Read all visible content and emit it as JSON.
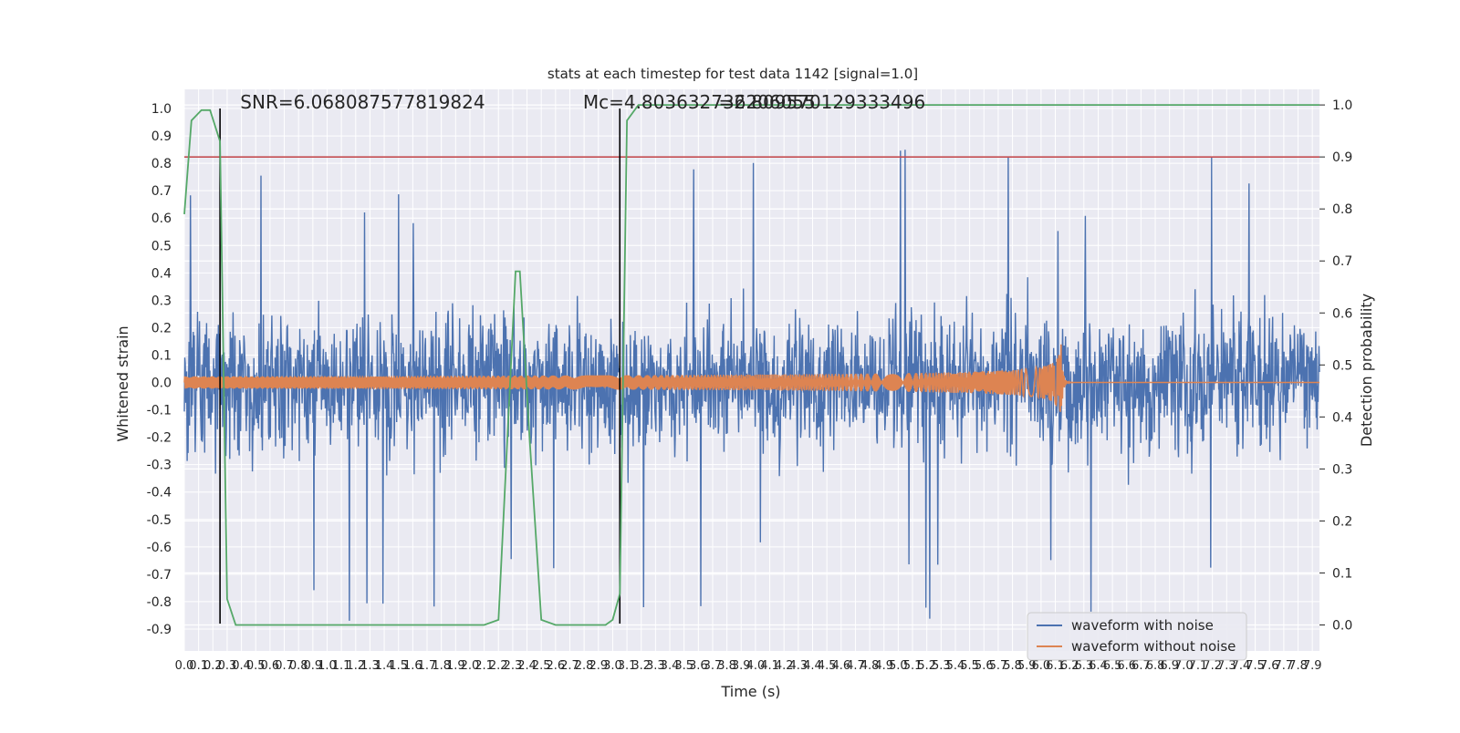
{
  "chart_data": {
    "type": "line",
    "title": "stats at each timestep for test data 1142 [signal=1.0]",
    "xlabel": "Time (s)",
    "ylabel": "Whitened strain",
    "ylabel_right": "Detection probability",
    "xlim": [
      0,
      7.95
    ],
    "ylim": [
      -0.98,
      1.07
    ],
    "ylim_right": [
      -0.05,
      1.03
    ],
    "x_ticks": [
      0.0,
      0.1,
      0.2,
      0.3,
      0.4,
      0.5,
      0.6,
      0.7,
      0.8,
      0.9,
      1.0,
      1.1,
      1.2,
      1.3,
      1.4,
      1.5,
      1.6,
      1.7,
      1.8,
      1.9,
      2.0,
      2.1,
      2.2,
      2.3,
      2.4,
      2.5,
      2.6,
      2.7,
      2.8,
      2.9,
      3.0,
      3.1,
      3.2,
      3.3,
      3.4,
      3.5,
      3.6,
      3.7,
      3.8,
      3.9,
      4.0,
      4.1,
      4.2,
      4.3,
      4.4,
      4.5,
      4.6,
      4.7,
      4.8,
      4.9,
      5.0,
      5.1,
      5.2,
      5.3,
      5.4,
      5.5,
      5.6,
      5.7,
      5.8,
      5.9,
      6.0,
      6.1,
      6.2,
      6.3,
      6.4,
      6.5,
      6.6,
      6.7,
      6.8,
      6.9,
      7.0,
      7.1,
      7.2,
      7.3,
      7.4,
      7.5,
      7.6,
      7.7,
      7.8,
      7.9
    ],
    "y_ticks": [
      1.0,
      0.9,
      0.8,
      0.7,
      0.6,
      0.5,
      0.4,
      0.3,
      0.2,
      0.1,
      0.0,
      -0.1,
      -0.2,
      -0.3,
      -0.4,
      -0.5,
      -0.6,
      -0.7,
      -0.8,
      -0.9
    ],
    "y_ticks_right": [
      1.0,
      0.9,
      0.8,
      0.7,
      0.6,
      0.5,
      0.4,
      0.3,
      0.2,
      0.1,
      0.0
    ],
    "grid": true,
    "legend_position": "bottom-right",
    "threshold": {
      "value": 0.9,
      "axis": "right",
      "color": "#c44e52"
    },
    "vertical_markers": [
      0.25,
      3.05
    ],
    "annotations": [
      {
        "text": "SNR=6.068087577819824",
        "x": 0.2,
        "y": 1.0
      },
      {
        "text": "Mᴄ=4.803632736206055",
        "x": 2.6,
        "y": 1.0
      },
      {
        "text": "=2.809570129333496",
        "x": 3.55,
        "y": 1.0
      }
    ],
    "series": [
      {
        "name": "waveform with noise",
        "color": "#4c72b0",
        "axis": "left",
        "kind": "noise",
        "amplitude_range": [
          -0.87,
          1.0
        ]
      },
      {
        "name": "waveform without noise",
        "color": "#dd8452",
        "axis": "left",
        "kind": "chirp",
        "merger_time": 6.14,
        "peak_amplitude": 0.14
      },
      {
        "name": "",
        "color": "#55a868",
        "axis": "right",
        "kind": "probability",
        "x": [
          0.0,
          0.05,
          0.12,
          0.18,
          0.25,
          0.3,
          0.36,
          2.1,
          2.2,
          2.32,
          2.35,
          2.42,
          2.5,
          2.6,
          2.95,
          3.0,
          3.05,
          3.1,
          3.18,
          3.3,
          7.95
        ],
        "values": [
          0.79,
          0.97,
          0.99,
          0.99,
          0.93,
          0.05,
          0.0,
          0.0,
          0.01,
          0.68,
          0.68,
          0.35,
          0.01,
          0.0,
          0.0,
          0.01,
          0.06,
          0.97,
          1.0,
          1.0,
          1.0
        ]
      }
    ]
  }
}
